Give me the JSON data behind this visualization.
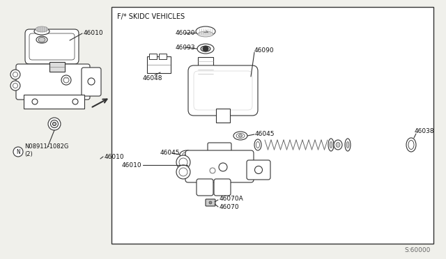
{
  "bg_color": "#f0f0eb",
  "line_color": "#333333",
  "text_color": "#111111",
  "gray_color": "#aaaaaa",
  "label_font_size": 6.5,
  "box_label": "F/* SKIDC VEHICLES",
  "bottom_right_label": "S:60000",
  "parts_left": {
    "main_label": "46010",
    "bolt_label": "N08911-1082G\n(2)",
    "bottom_label": "46010"
  },
  "parts_right": {
    "cap_label": "46020",
    "collar_label": "46093",
    "bracket_label": "46048",
    "reservoir_label": "46090",
    "seal1_label": "46045",
    "seal2_label": "46045",
    "piston_label": "46038",
    "body_label": "46010",
    "plug1_label": "46070A",
    "plug2_label": "46070"
  }
}
